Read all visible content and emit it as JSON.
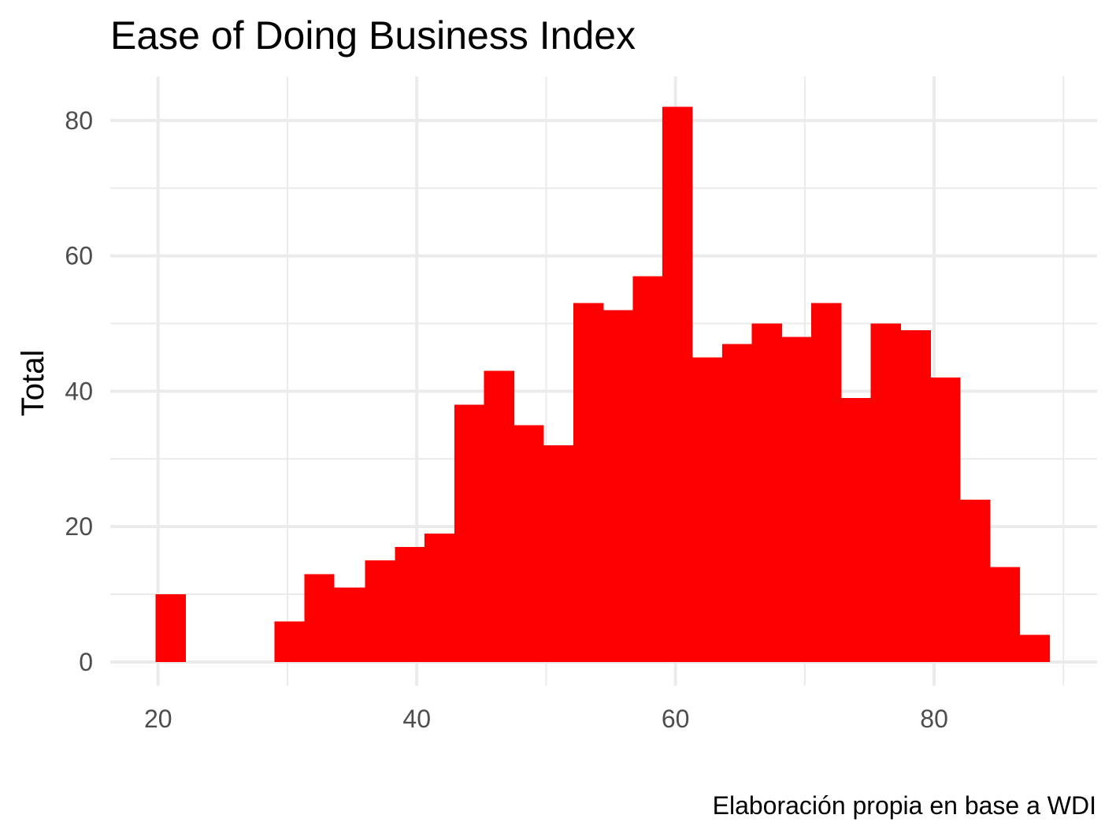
{
  "chart_data": {
    "type": "bar",
    "title": "Ease of Doing Business Index",
    "xlabel": "",
    "ylabel": "Total",
    "caption": "Elaboración propia en base a WDI",
    "bar_color": "#ff0000",
    "grid": true,
    "xlim": [
      16.3,
      92.6
    ],
    "ylim": [
      -3.5,
      86.5
    ],
    "x_ticks": [
      20,
      40,
      60,
      80
    ],
    "y_ticks": [
      0,
      20,
      40,
      60,
      80
    ],
    "bin_width": 2.31,
    "bins": [
      {
        "start": 19.8,
        "end": 22.1,
        "count": 10
      },
      {
        "start": 22.1,
        "end": 24.4,
        "count": 0
      },
      {
        "start": 24.4,
        "end": 26.7,
        "count": 0
      },
      {
        "start": 26.7,
        "end": 29.0,
        "count": 0
      },
      {
        "start": 29.0,
        "end": 31.3,
        "count": 6
      },
      {
        "start": 31.3,
        "end": 33.6,
        "count": 13
      },
      {
        "start": 33.6,
        "end": 36.0,
        "count": 11
      },
      {
        "start": 36.0,
        "end": 38.3,
        "count": 15
      },
      {
        "start": 38.3,
        "end": 40.6,
        "count": 17
      },
      {
        "start": 40.6,
        "end": 42.9,
        "count": 19
      },
      {
        "start": 42.9,
        "end": 45.2,
        "count": 38
      },
      {
        "start": 45.2,
        "end": 47.5,
        "count": 43
      },
      {
        "start": 47.5,
        "end": 49.8,
        "count": 35
      },
      {
        "start": 49.8,
        "end": 52.1,
        "count": 32
      },
      {
        "start": 52.1,
        "end": 54.4,
        "count": 53
      },
      {
        "start": 54.4,
        "end": 56.7,
        "count": 52
      },
      {
        "start": 56.7,
        "end": 59.0,
        "count": 57
      },
      {
        "start": 59.0,
        "end": 61.3,
        "count": 82
      },
      {
        "start": 61.3,
        "end": 63.6,
        "count": 45
      },
      {
        "start": 63.6,
        "end": 65.9,
        "count": 47
      },
      {
        "start": 65.9,
        "end": 68.2,
        "count": 50
      },
      {
        "start": 68.2,
        "end": 70.5,
        "count": 48
      },
      {
        "start": 70.5,
        "end": 72.8,
        "count": 53
      },
      {
        "start": 72.8,
        "end": 75.1,
        "count": 39
      },
      {
        "start": 75.1,
        "end": 77.4,
        "count": 50
      },
      {
        "start": 77.4,
        "end": 79.7,
        "count": 49
      },
      {
        "start": 79.7,
        "end": 82.0,
        "count": 42
      },
      {
        "start": 82.0,
        "end": 84.3,
        "count": 24
      },
      {
        "start": 84.3,
        "end": 86.6,
        "count": 14
      },
      {
        "start": 86.6,
        "end": 88.9,
        "count": 4
      }
    ]
  }
}
